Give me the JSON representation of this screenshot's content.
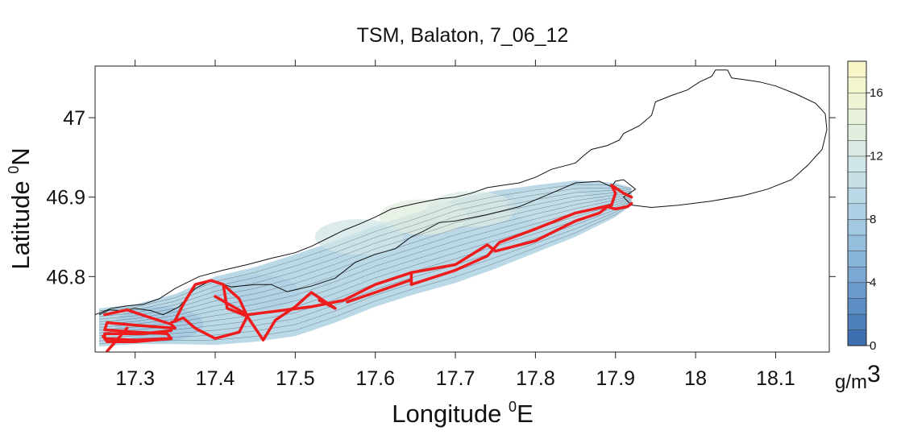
{
  "chart_data": {
    "type": "heatmap",
    "title": "TSM, Balaton, 7_06_12",
    "xlabel": {
      "text": "Longitude ",
      "sup": "0",
      "suffix": "E"
    },
    "ylabel": {
      "text": "Latitude ",
      "sup": "0",
      "suffix": "N"
    },
    "xlim": [
      17.25,
      18.167
    ],
    "ylim": [
      46.705,
      47.065
    ],
    "x_ticks": [
      17.3,
      17.4,
      17.5,
      17.6,
      17.7,
      17.8,
      17.9,
      18,
      18.1
    ],
    "x_tick_labels": [
      "17.3",
      "17.4",
      "17.5",
      "17.6",
      "17.7",
      "17.8",
      "17.9",
      "18",
      "18.1"
    ],
    "y_ticks": [
      46.8,
      46.9,
      47
    ],
    "y_tick_labels": [
      "46.8",
      "46.9",
      "47"
    ],
    "grid": false,
    "colorbar": {
      "min": 0,
      "max": 18,
      "step": 1,
      "tick_values": [
        0,
        4,
        8,
        12,
        16
      ],
      "tick_labels": [
        "0",
        "4",
        "8",
        "12",
        "16"
      ],
      "unit_main": "g/m",
      "unit_sup": "3",
      "colors": [
        "#3e6fb0",
        "#4d7fbb",
        "#5c8dc3",
        "#6b9bcb",
        "#7aa8d2",
        "#88b4d8",
        "#96bedd",
        "#a3c8e1",
        "#afd0e4",
        "#bbd8e6",
        "#c6dfe7",
        "#d0e5e6",
        "#d9eae3",
        "#e1eedf",
        "#e8f1da",
        "#eef3d4",
        "#f3f5cf",
        "#f6f6c9"
      ]
    },
    "lake_outline": [
      [
        17.255,
        46.752
      ],
      [
        17.268,
        46.758
      ],
      [
        17.285,
        46.757
      ],
      [
        17.3,
        46.76
      ],
      [
        17.32,
        46.757
      ],
      [
        17.335,
        46.752
      ],
      [
        17.355,
        46.762
      ],
      [
        17.375,
        46.785
      ],
      [
        17.395,
        46.795
      ],
      [
        17.42,
        46.787
      ],
      [
        17.45,
        46.79
      ],
      [
        17.47,
        46.79
      ],
      [
        17.49,
        46.781
      ],
      [
        17.52,
        46.788
      ],
      [
        17.55,
        46.798
      ],
      [
        17.575,
        46.818
      ],
      [
        17.6,
        46.828
      ],
      [
        17.625,
        46.835
      ],
      [
        17.645,
        46.85
      ],
      [
        17.66,
        46.857
      ],
      [
        17.68,
        46.868
      ],
      [
        17.7,
        46.87
      ],
      [
        17.74,
        46.878
      ],
      [
        17.78,
        46.888
      ],
      [
        17.82,
        46.905
      ],
      [
        17.85,
        46.918
      ],
      [
        17.88,
        46.92
      ],
      [
        17.895,
        46.913
      ],
      [
        17.9,
        46.92
      ],
      [
        17.91,
        46.922
      ],
      [
        17.925,
        46.91
      ],
      [
        17.91,
        46.9
      ],
      [
        17.92,
        46.89
      ],
      [
        17.945,
        46.887
      ],
      [
        17.98,
        46.89
      ],
      [
        18.02,
        46.895
      ],
      [
        18.06,
        46.902
      ],
      [
        18.09,
        46.91
      ],
      [
        18.12,
        46.922
      ],
      [
        18.14,
        46.94
      ],
      [
        18.158,
        46.96
      ],
      [
        18.164,
        46.985
      ],
      [
        18.162,
        47.005
      ],
      [
        18.15,
        47.018
      ],
      [
        18.125,
        47.03
      ],
      [
        18.1,
        47.04
      ],
      [
        18.08,
        47.045
      ],
      [
        18.06,
        47.048
      ],
      [
        18.045,
        47.05
      ],
      [
        18.04,
        47.06
      ],
      [
        18.025,
        47.06
      ],
      [
        18.02,
        47.052
      ],
      [
        18.005,
        47.045
      ],
      [
        17.99,
        47.035
      ],
      [
        17.97,
        47.028
      ],
      [
        17.95,
        47.02
      ],
      [
        17.945,
        47.003
      ],
      [
        17.93,
        46.99
      ],
      [
        17.91,
        46.98
      ],
      [
        17.905,
        46.972
      ],
      [
        17.89,
        46.965
      ],
      [
        17.87,
        46.96
      ],
      [
        17.86,
        46.952
      ],
      [
        17.85,
        46.943
      ],
      [
        17.82,
        46.935
      ],
      [
        17.8,
        46.925
      ],
      [
        17.78,
        46.918
      ],
      [
        17.76,
        46.915
      ],
      [
        17.74,
        46.912
      ],
      [
        17.72,
        46.905
      ],
      [
        17.7,
        46.9
      ],
      [
        17.68,
        46.898
      ],
      [
        17.65,
        46.892
      ],
      [
        17.62,
        46.885
      ],
      [
        17.6,
        46.875
      ],
      [
        17.58,
        46.866
      ],
      [
        17.56,
        46.858
      ],
      [
        17.54,
        46.848
      ],
      [
        17.52,
        46.838
      ],
      [
        17.5,
        46.83
      ],
      [
        17.47,
        46.823
      ],
      [
        17.44,
        46.815
      ],
      [
        17.41,
        46.808
      ],
      [
        17.38,
        46.8
      ],
      [
        17.35,
        46.785
      ],
      [
        17.33,
        46.772
      ],
      [
        17.31,
        46.765
      ],
      [
        17.29,
        46.763
      ],
      [
        17.27,
        46.76
      ],
      [
        17.25,
        46.752
      ]
    ],
    "tsm_field": {
      "south_shore": [
        [
          17.255,
          46.712
        ],
        [
          17.3,
          46.715
        ],
        [
          17.35,
          46.715
        ],
        [
          17.4,
          46.714
        ],
        [
          17.45,
          46.718
        ],
        [
          17.5,
          46.725
        ],
        [
          17.55,
          46.742
        ],
        [
          17.6,
          46.762
        ],
        [
          17.65,
          46.778
        ],
        [
          17.7,
          46.792
        ],
        [
          17.75,
          46.81
        ],
        [
          17.8,
          46.83
        ],
        [
          17.85,
          46.85
        ],
        [
          17.9,
          46.875
        ],
        [
          17.92,
          46.89
        ]
      ],
      "north_shore": [
        [
          17.92,
          46.912
        ],
        [
          17.9,
          46.918
        ],
        [
          17.85,
          46.921
        ],
        [
          17.8,
          46.915
        ],
        [
          17.75,
          46.908
        ],
        [
          17.7,
          46.898
        ],
        [
          17.65,
          46.88
        ],
        [
          17.6,
          46.864
        ],
        [
          17.55,
          46.845
        ],
        [
          17.5,
          46.828
        ],
        [
          17.45,
          46.812
        ],
        [
          17.4,
          46.8
        ],
        [
          17.35,
          46.778
        ],
        [
          17.3,
          46.765
        ],
        [
          17.255,
          46.76
        ]
      ],
      "regions": [
        {
          "center": [
            17.66,
            46.875
          ],
          "value": 13.5
        },
        {
          "center": [
            17.72,
            46.885
          ],
          "value": 12.5
        },
        {
          "center": [
            17.58,
            46.85
          ],
          "value": 11.5
        },
        {
          "center": [
            17.82,
            46.89
          ],
          "value": 10.5
        },
        {
          "center": [
            17.45,
            46.78
          ],
          "value": 8.5
        },
        {
          "center": [
            17.33,
            46.74
          ],
          "value": 7.5
        }
      ]
    },
    "ship_track": [
      [
        [
          17.262,
          46.752
        ],
        [
          17.29,
          46.758
        ],
        [
          17.32,
          46.748
        ],
        [
          17.345,
          46.74
        ],
        [
          17.35,
          46.735
        ],
        [
          17.31,
          46.738
        ],
        [
          17.265,
          46.742
        ],
        [
          17.262,
          46.733
        ],
        [
          17.3,
          46.73
        ],
        [
          17.34,
          46.728
        ],
        [
          17.345,
          46.722
        ],
        [
          17.3,
          46.72
        ],
        [
          17.262,
          46.722
        ],
        [
          17.262,
          46.728
        ],
        [
          17.31,
          46.728
        ],
        [
          17.345,
          46.732
        ]
      ],
      [
        [
          17.26,
          46.725
        ],
        [
          17.265,
          46.718
        ],
        [
          17.3,
          46.718
        ],
        [
          17.345,
          46.722
        ]
      ],
      [
        [
          17.265,
          46.706
        ],
        [
          17.29,
          46.735
        ]
      ],
      [
        [
          17.35,
          46.745
        ],
        [
          17.36,
          46.765
        ],
        [
          17.375,
          46.79
        ],
        [
          17.395,
          46.795
        ],
        [
          17.41,
          46.79
        ],
        [
          17.43,
          46.772
        ],
        [
          17.44,
          46.75
        ],
        [
          17.43,
          46.73
        ],
        [
          17.4,
          46.722
        ],
        [
          17.375,
          46.735
        ],
        [
          17.36,
          46.748
        ],
        [
          17.345,
          46.742
        ]
      ],
      [
        [
          17.41,
          46.79
        ],
        [
          17.415,
          46.76
        ],
        [
          17.44,
          46.75
        ],
        [
          17.46,
          46.72
        ],
        [
          17.475,
          46.745
        ],
        [
          17.5,
          46.762
        ],
        [
          17.52,
          46.78
        ],
        [
          17.55,
          46.76
        ],
        [
          17.53,
          46.77
        ]
      ],
      [
        [
          17.4,
          46.775
        ],
        [
          17.44,
          46.752
        ],
        [
          17.52,
          46.762
        ],
        [
          17.56,
          46.77
        ],
        [
          17.6,
          46.79
        ],
        [
          17.645,
          46.805
        ],
        [
          17.7,
          46.815
        ],
        [
          17.74,
          46.84
        ],
        [
          17.75,
          46.832
        ],
        [
          17.8,
          46.845
        ],
        [
          17.85,
          46.87
        ],
        [
          17.88,
          46.88
        ],
        [
          17.89,
          46.888
        ],
        [
          17.9,
          46.885
        ],
        [
          17.915,
          46.888
        ],
        [
          17.92,
          46.892
        ]
      ],
      [
        [
          17.565,
          46.768
        ],
        [
          17.6,
          46.78
        ],
        [
          17.645,
          46.796
        ],
        [
          17.645,
          46.805
        ],
        [
          17.645,
          46.79
        ],
        [
          17.7,
          46.808
        ],
        [
          17.74,
          46.826
        ],
        [
          17.755,
          46.843
        ],
        [
          17.8,
          46.86
        ],
        [
          17.85,
          46.88
        ],
        [
          17.895,
          46.89
        ],
        [
          17.9,
          46.905
        ],
        [
          17.895,
          46.915
        ],
        [
          17.91,
          46.905
        ],
        [
          17.92,
          46.9
        ]
      ]
    ]
  }
}
